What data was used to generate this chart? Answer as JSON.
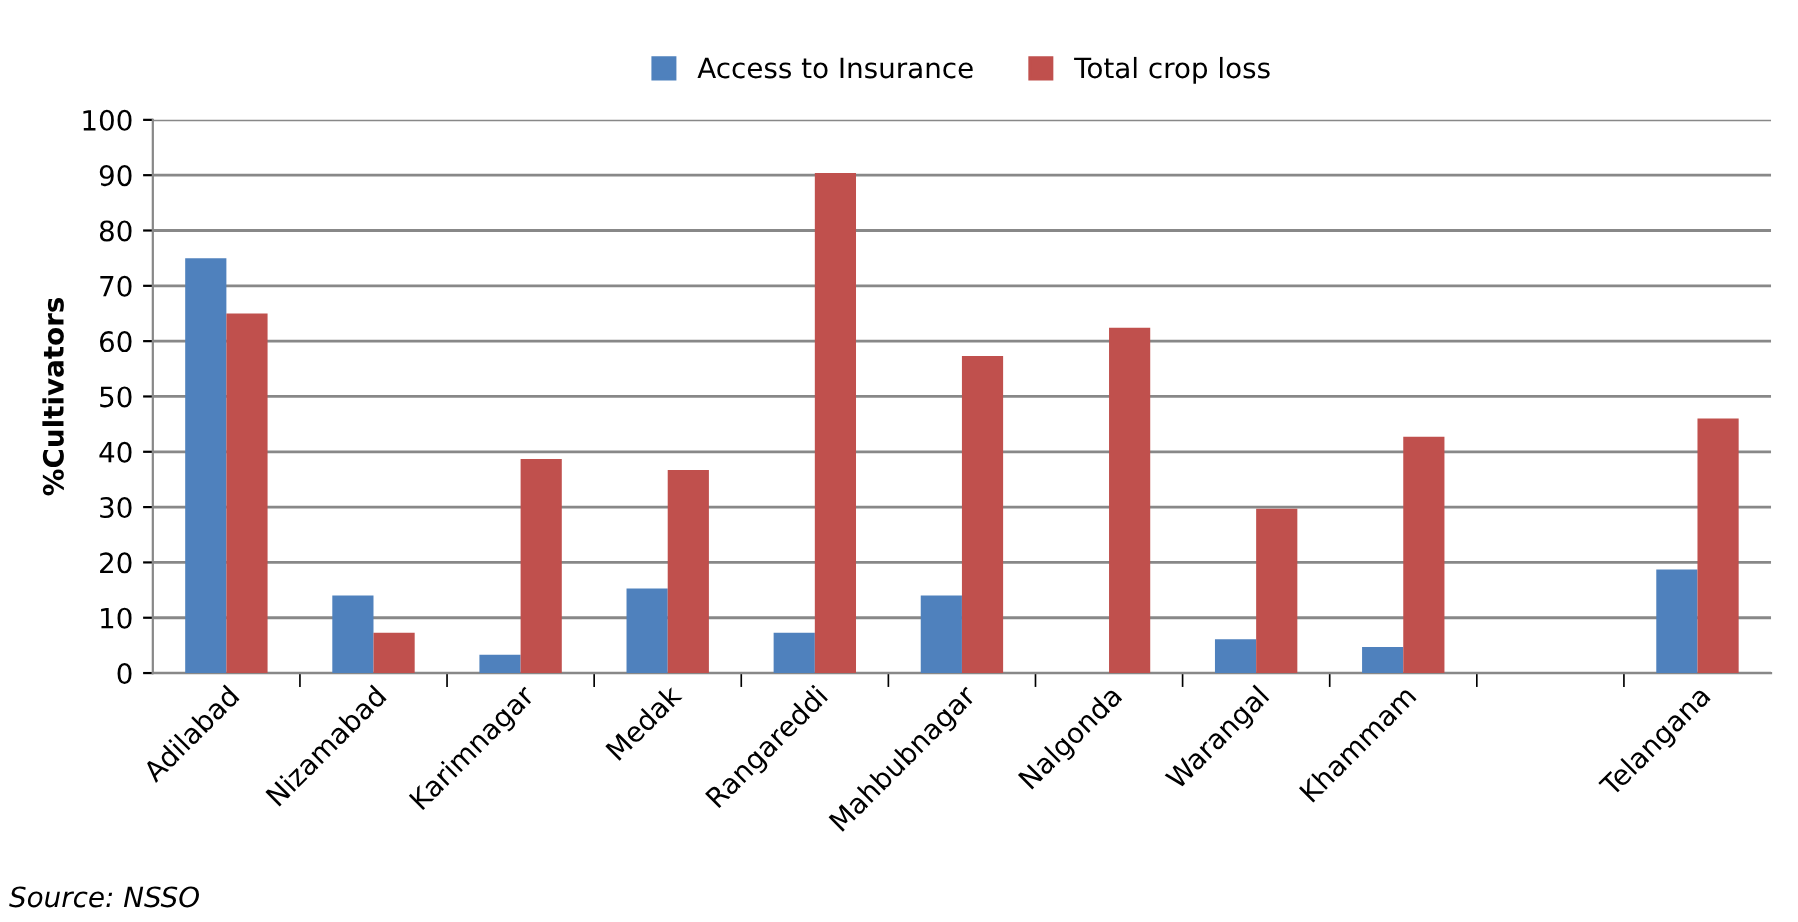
{
  "chart_data": {
    "type": "bar",
    "ylabel": "%Cultivators",
    "categories": [
      "Adilabad",
      "Nizamabad",
      "Karimnagar",
      "Medak",
      "Rangareddi",
      "Mahbubnagar",
      "Nalgonda",
      "Warangal",
      "Khammam",
      null,
      "Telangana"
    ],
    "series": [
      {
        "name": "Access to Insurance",
        "color": "#4f81bd",
        "values": [
          75,
          14,
          3.3,
          15.3,
          7.3,
          14,
          null,
          6.1,
          4.7,
          null,
          18.7
        ]
      },
      {
        "name": "Total crop loss",
        "color": "#c0504d",
        "values": [
          65,
          7.3,
          38.7,
          36.7,
          90.4,
          57.3,
          62.4,
          29.7,
          42.7,
          null,
          46
        ]
      }
    ],
    "ylim": [
      0,
      100
    ],
    "yticks": [
      0,
      10,
      20,
      30,
      40,
      50,
      60,
      70,
      80,
      90,
      100
    ],
    "grid": "y",
    "legend": "top",
    "annotations": [
      "Source: NSSO"
    ]
  }
}
